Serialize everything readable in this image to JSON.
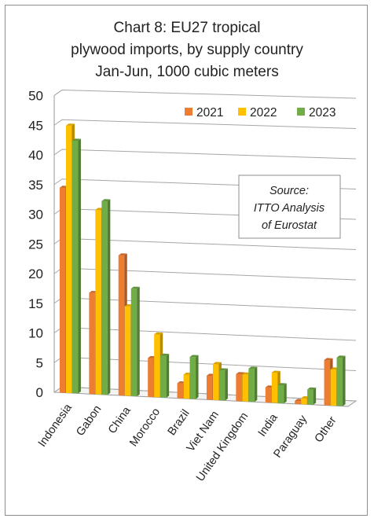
{
  "chart_data": {
    "type": "bar",
    "title": [
      "Chart 8: EU27 tropical",
      "plywood imports, by supply country",
      "Jan-Jun, 1000 cubic meters"
    ],
    "categories": [
      "Indonesia",
      "Gabon",
      "China",
      "Morocco",
      "Brazil",
      "Viet Nam",
      "United Kingdom",
      "India",
      "Paraguay",
      "Other"
    ],
    "series": [
      {
        "name": "2021",
        "color": "#ED7D31",
        "values": [
          34.5,
          17,
          23.5,
          6.5,
          2.5,
          4,
          4.5,
          2.5,
          0.5,
          7.5
        ]
      },
      {
        "name": "2022",
        "color": "#FFC000",
        "values": [
          45,
          31,
          15,
          10.5,
          4,
          6,
          4.5,
          5,
          1,
          6
        ]
      },
      {
        "name": "2023",
        "color": "#70AD47",
        "values": [
          42.5,
          32.5,
          18,
          7,
          7,
          5,
          5.5,
          3,
          2.5,
          8
        ]
      }
    ],
    "y_ticks": [
      "0",
      "5",
      "10",
      "15",
      "20",
      "25",
      "30",
      "35",
      "40",
      "45",
      "50"
    ],
    "ylim": [
      0,
      50
    ],
    "grid": true,
    "legend_position": "top-right",
    "annotation": [
      "Source:",
      "ITTO Analysis",
      "of Eurostat"
    ]
  }
}
